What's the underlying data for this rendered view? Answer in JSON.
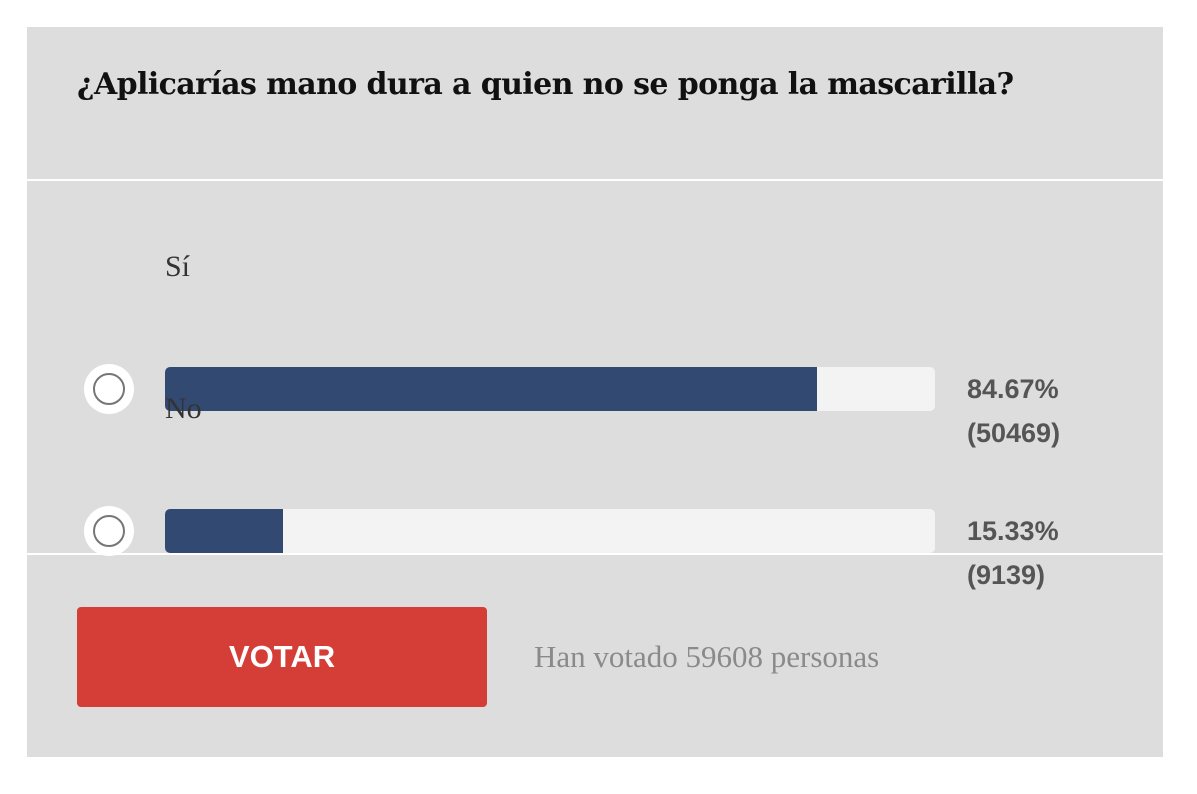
{
  "poll": {
    "question": "¿Aplicarías mano dura a quien no se ponga la mascarilla?",
    "options": [
      {
        "label": "Sí",
        "percent_text": "84.67%",
        "votes_text": "(50469)",
        "fraction": 0.8467
      },
      {
        "label": "No",
        "percent_text": "15.33%",
        "votes_text": "(9139)",
        "fraction": 0.1533
      }
    ],
    "vote_button_label": "VOTAR",
    "total_votes_text": "Han votado 59608 personas",
    "colors": {
      "panel_background": "#dddddd",
      "bar_fill": "#324a72",
      "bar_track": "#f3f3f3",
      "button": "#d53e36",
      "button_text": "#ffffff"
    }
  }
}
